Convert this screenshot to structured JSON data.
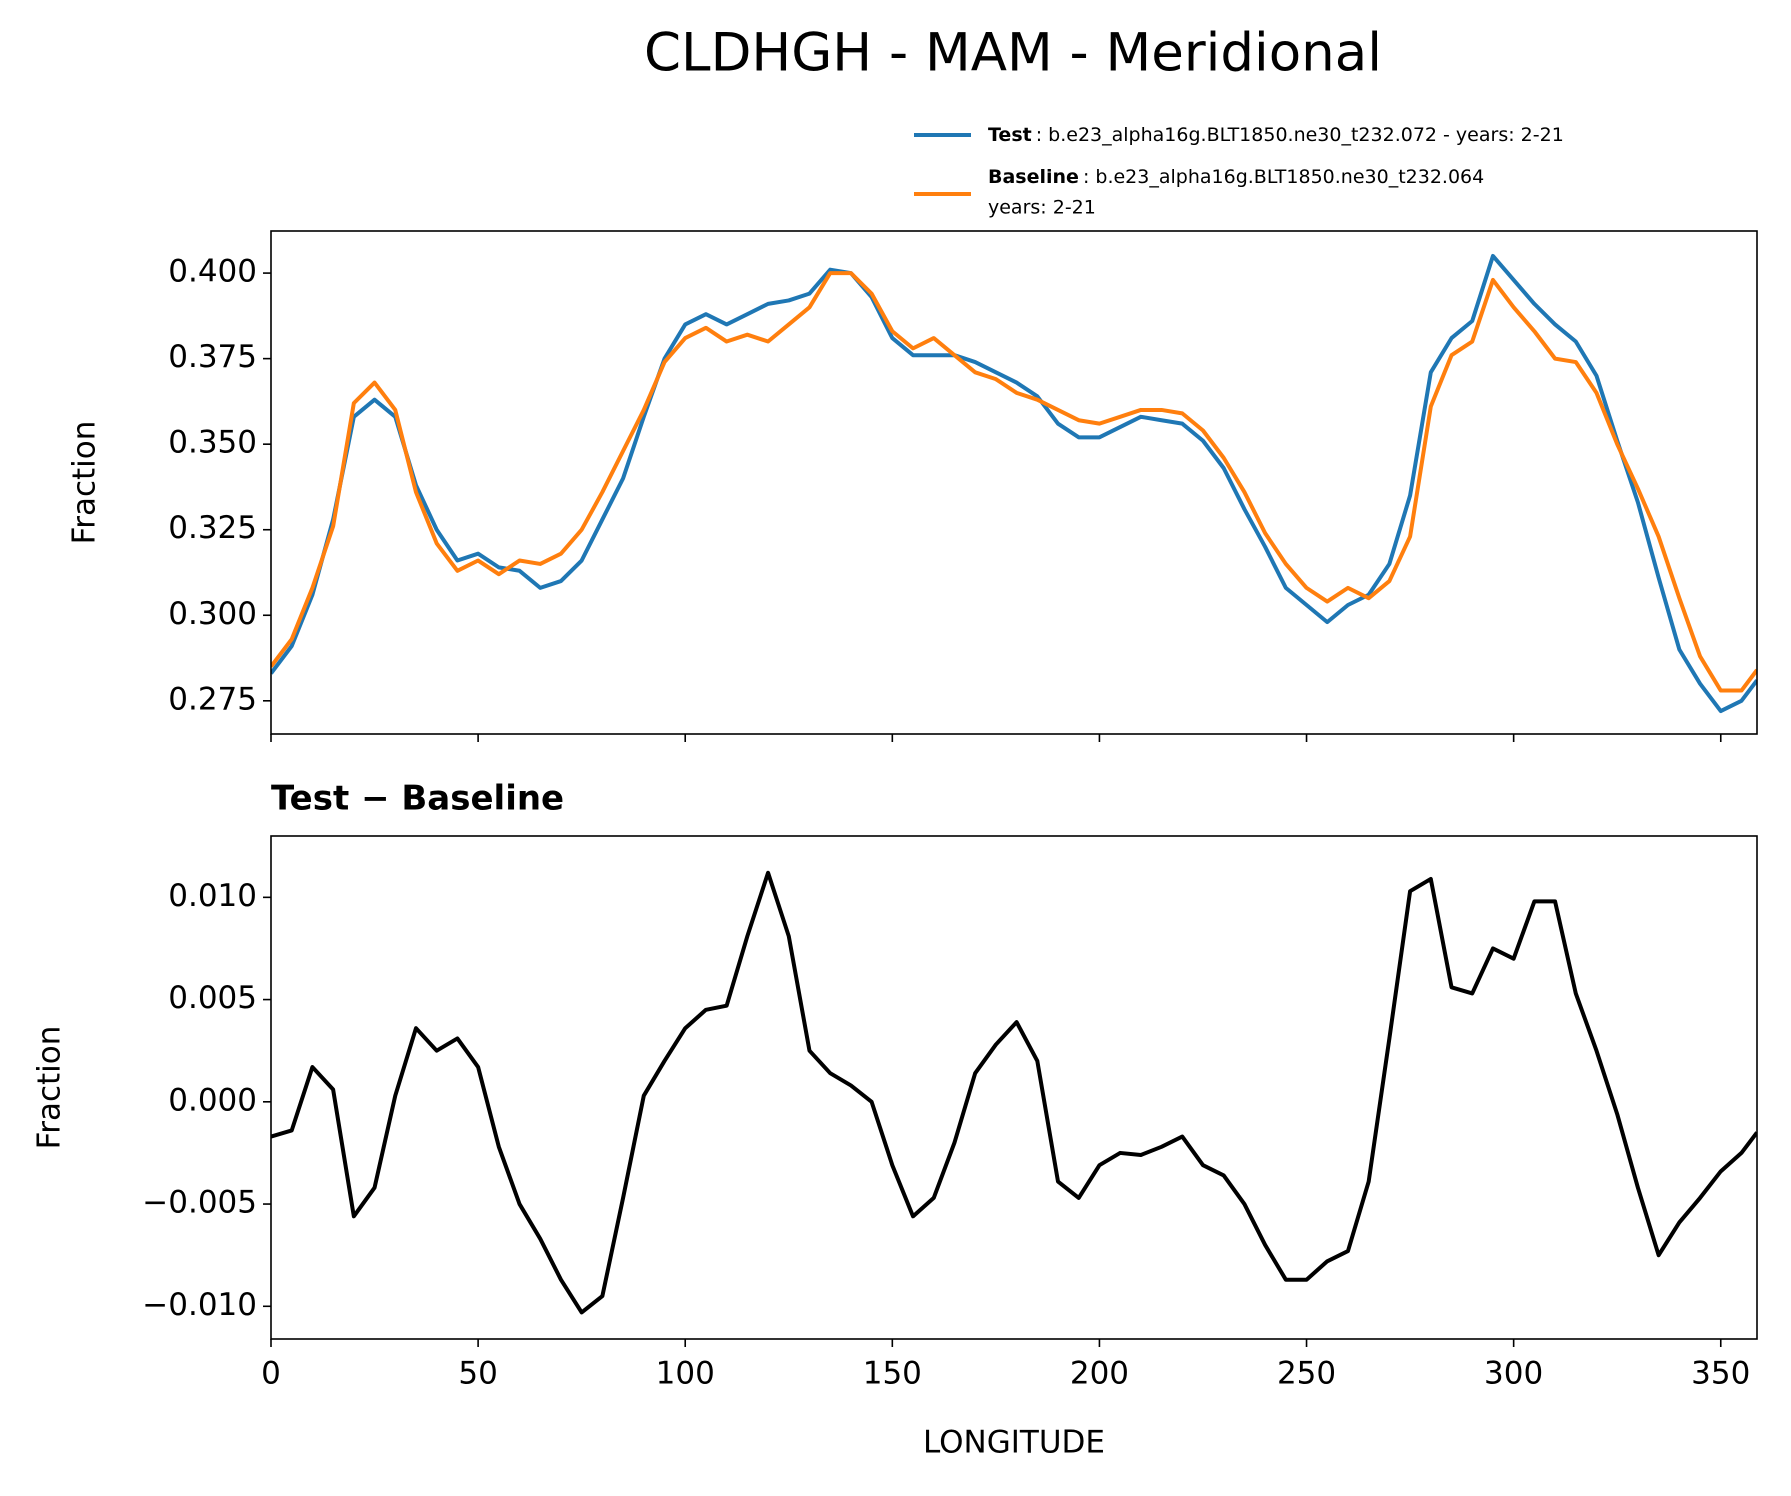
{
  "chart_data": [
    {
      "type": "line",
      "title": "CLDHGH - MAM - Meridional",
      "ylabel": "Fraction",
      "x": [
        0,
        5,
        10,
        15,
        20,
        25,
        30,
        35,
        40,
        45,
        50,
        55,
        60,
        65,
        70,
        75,
        80,
        85,
        90,
        95,
        100,
        105,
        110,
        115,
        120,
        125,
        130,
        135,
        140,
        145,
        150,
        155,
        160,
        165,
        170,
        175,
        180,
        185,
        190,
        195,
        200,
        205,
        210,
        215,
        220,
        225,
        230,
        235,
        240,
        245,
        250,
        255,
        260,
        265,
        270,
        275,
        280,
        285,
        290,
        295,
        300,
        305,
        310,
        315,
        320,
        325,
        330,
        335,
        340,
        345,
        350,
        355,
        358.75
      ],
      "series": [
        {
          "name": "Test",
          "detail": [
            ": b.e23_alpha16g.BLT1850.ne30_t232.072 - years: 2-21"
          ],
          "color": "#1f77b4",
          "values": [
            0.283,
            0.291,
            0.306,
            0.328,
            0.358,
            0.363,
            0.358,
            0.338,
            0.325,
            0.316,
            0.318,
            0.314,
            0.313,
            0.308,
            0.31,
            0.316,
            0.328,
            0.34,
            0.358,
            0.375,
            0.385,
            0.388,
            0.385,
            0.388,
            0.391,
            0.392,
            0.394,
            0.401,
            0.4,
            0.393,
            0.381,
            0.376,
            0.376,
            0.376,
            0.374,
            0.371,
            0.368,
            0.364,
            0.356,
            0.352,
            0.352,
            0.355,
            0.358,
            0.357,
            0.356,
            0.351,
            0.343,
            0.331,
            0.32,
            0.308,
            0.303,
            0.298,
            0.303,
            0.306,
            0.315,
            0.335,
            0.371,
            0.381,
            0.386,
            0.405,
            0.398,
            0.391,
            0.385,
            0.38,
            0.37,
            0.351,
            0.333,
            0.311,
            0.29,
            0.28,
            0.272,
            0.275,
            0.281
          ]
        },
        {
          "name": "Baseline",
          "detail": [
            ": b.e23_alpha16g.BLT1850.ne30_t232.064",
            "years: 2-21"
          ],
          "color": "#ff7f0e",
          "values": [
            0.285,
            0.293,
            0.308,
            0.326,
            0.362,
            0.368,
            0.36,
            0.336,
            0.321,
            0.313,
            0.316,
            0.312,
            0.316,
            0.315,
            0.318,
            0.325,
            0.336,
            0.348,
            0.36,
            0.374,
            0.381,
            0.384,
            0.38,
            0.382,
            0.38,
            0.385,
            0.39,
            0.4,
            0.4,
            0.394,
            0.383,
            0.378,
            0.381,
            0.376,
            0.371,
            0.369,
            0.365,
            0.363,
            0.36,
            0.357,
            0.356,
            0.358,
            0.36,
            0.36,
            0.359,
            0.354,
            0.346,
            0.336,
            0.324,
            0.315,
            0.308,
            0.304,
            0.308,
            0.305,
            0.31,
            0.323,
            0.361,
            0.376,
            0.38,
            0.398,
            0.39,
            0.383,
            0.375,
            0.374,
            0.365,
            0.35,
            0.337,
            0.323,
            0.305,
            0.288,
            0.278,
            0.278,
            0.284
          ]
        }
      ],
      "xlim": [
        0,
        358.75
      ],
      "xticks": [
        0,
        50,
        100,
        150,
        200,
        250,
        300,
        350
      ],
      "show_xtick_labels": false,
      "ylim": [
        0.2653,
        0.4123
      ],
      "yticks": [
        0.275,
        {
          "value": 0.3,
          "label": "0.300"
        },
        0.325,
        {
          "value": 0.35,
          "label": "0.350"
        },
        0.375,
        {
          "value": 0.4,
          "label": "0.400"
        }
      ],
      "legend": "upper right"
    },
    {
      "type": "line",
      "title": "Test − Baseline",
      "ylabel": "Fraction",
      "xlabel": "LONGITUDE",
      "x": [
        0,
        5,
        10,
        15,
        20,
        25,
        30,
        35,
        40,
        45,
        50,
        55,
        60,
        65,
        70,
        75,
        80,
        85,
        90,
        95,
        100,
        105,
        110,
        115,
        120,
        125,
        130,
        135,
        140,
        145,
        150,
        155,
        160,
        165,
        170,
        175,
        180,
        185,
        190,
        195,
        200,
        205,
        210,
        215,
        220,
        225,
        230,
        235,
        240,
        245,
        250,
        255,
        260,
        265,
        270,
        275,
        280,
        285,
        290,
        295,
        300,
        305,
        310,
        315,
        320,
        325,
        330,
        335,
        340,
        345,
        350,
        355,
        358.75
      ],
      "series": [
        {
          "color": "#000000",
          "values": [
            -0.0017,
            -0.0014,
            0.0017,
            0.0006,
            -0.0056,
            -0.0042,
            0.0003,
            0.0036,
            0.0025,
            0.0031,
            0.0017,
            -0.0022,
            -0.005,
            -0.0067,
            -0.0087,
            -0.0103,
            -0.0095,
            -0.0047,
            0.0003,
            0.002,
            0.0036,
            0.0045,
            0.0047,
            0.0081,
            0.0112,
            0.0081,
            0.0025,
            0.0014,
            0.0008,
            0.0,
            -0.0031,
            -0.0056,
            -0.0047,
            -0.002,
            0.0014,
            0.0028,
            0.0039,
            0.002,
            -0.0039,
            -0.0047,
            -0.0031,
            -0.0025,
            -0.0026,
            -0.0022,
            -0.0017,
            -0.0031,
            -0.0036,
            -0.005,
            -0.007,
            -0.0087,
            -0.0087,
            -0.0078,
            -0.0073,
            -0.0039,
            0.0031,
            0.0103,
            0.0109,
            0.0056,
            0.0053,
            0.0075,
            0.007,
            0.0098,
            0.0098,
            0.0053,
            0.0025,
            -0.0006,
            -0.0042,
            -0.0075,
            -0.0059,
            -0.0047,
            -0.0034,
            -0.0025,
            -0.0015
          ]
        }
      ],
      "xlim": [
        0,
        358.75
      ],
      "xticks": [
        0,
        50,
        100,
        150,
        200,
        250,
        300,
        350
      ],
      "show_xtick_labels": true,
      "ylim": [
        -0.0116,
        0.013
      ],
      "yticks": [
        {
          "value": -0.01,
          "label": "−0.010"
        },
        {
          "value": -0.005,
          "label": "−0.005"
        },
        {
          "value": 0,
          "label": "0.000"
        },
        0.005,
        {
          "value": 0.01,
          "label": "0.010"
        }
      ]
    }
  ]
}
